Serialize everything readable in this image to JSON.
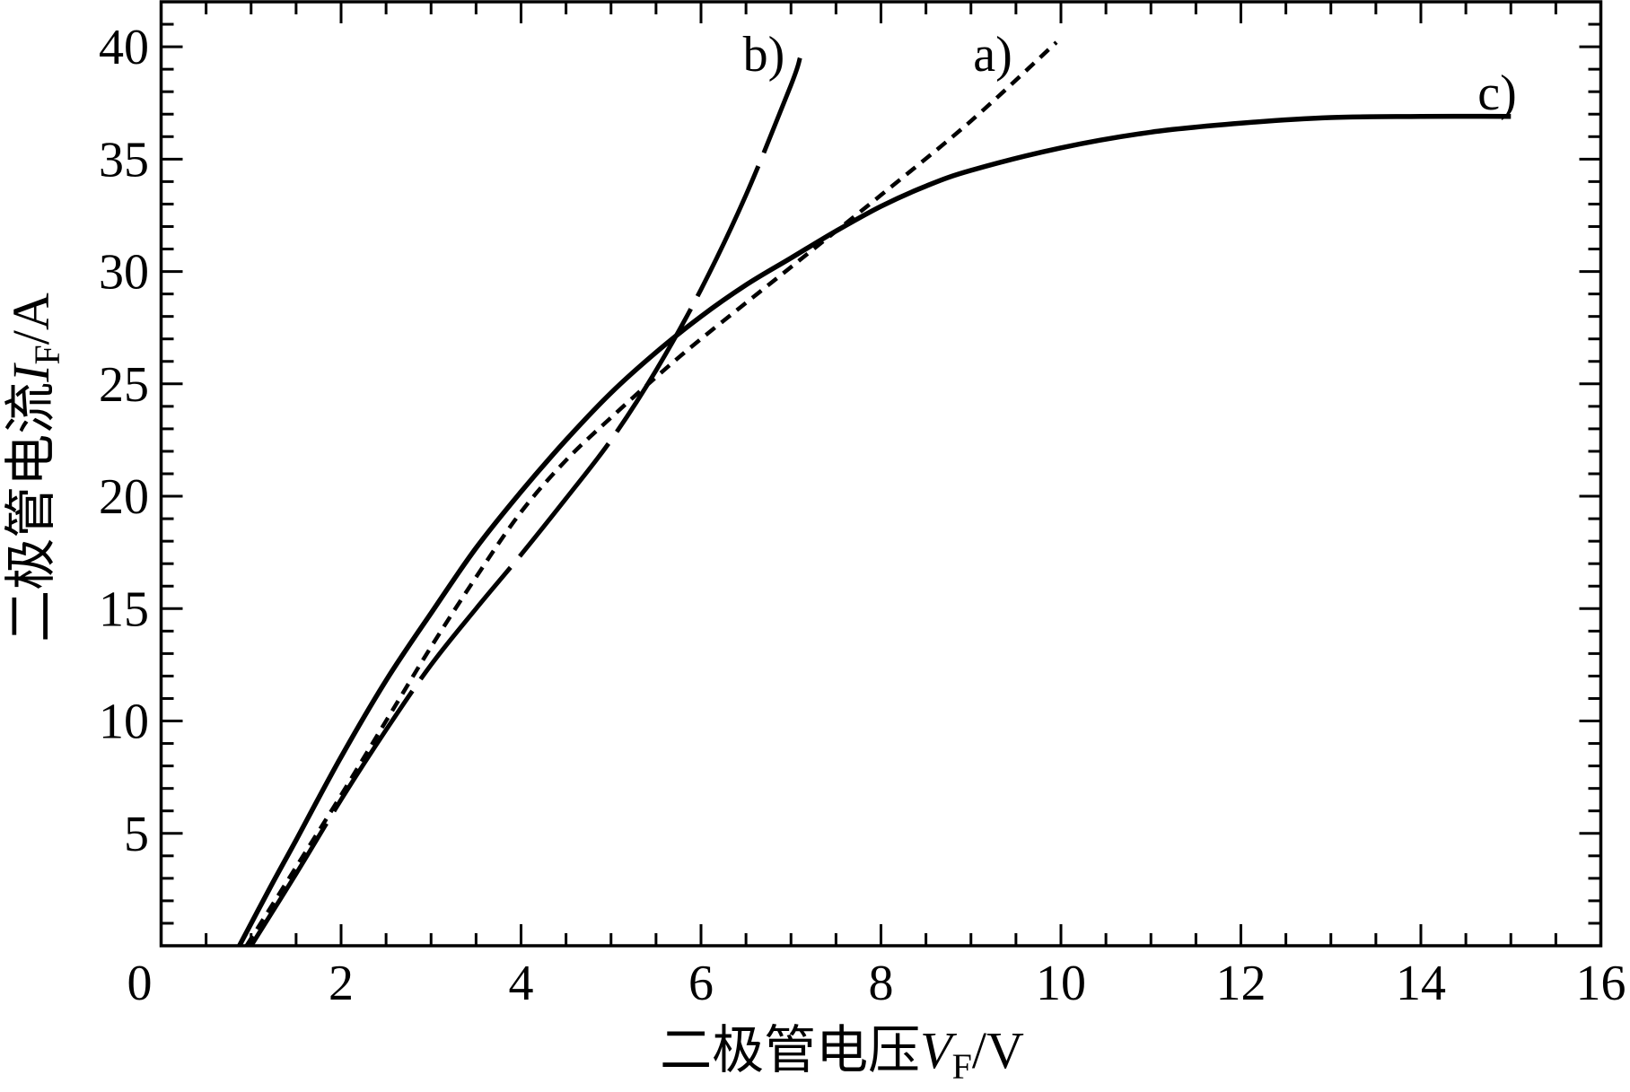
{
  "chart_data": {
    "type": "line",
    "xlabel": {
      "text": "二极管电压",
      "symbol": "V",
      "subscript": "F",
      "unit": "/V"
    },
    "ylabel": {
      "text": "二极管电流",
      "symbol": "I",
      "subscript": "F",
      "unit": "/A"
    },
    "xlim": [
      0,
      16
    ],
    "ylim": [
      0,
      42
    ],
    "x_ticks": [
      0,
      2,
      4,
      6,
      8,
      10,
      12,
      14,
      16
    ],
    "x_tick_labels": [
      "0",
      "2",
      "4",
      "6",
      "8",
      "10",
      "12",
      "14",
      "16"
    ],
    "y_ticks": [
      5,
      10,
      15,
      20,
      25,
      30,
      35,
      40
    ],
    "y_tick_labels": [
      "5",
      "10",
      "15",
      "20",
      "25",
      "30",
      "35",
      "40"
    ],
    "x_minor_step": 0.5,
    "y_minor_step": 1,
    "grid": false,
    "ticks_on_all_sides": true,
    "series": [
      {
        "name": "a)",
        "line_style": "short-dash",
        "color": "#000000",
        "x": [
          0.95,
          1.5,
          2,
          2.5,
          3,
          3.5,
          4,
          4.5,
          5,
          5.5,
          6,
          7,
          8,
          9,
          9.95
        ],
        "y": [
          0,
          3.5,
          6.7,
          10.0,
          13.3,
          16.4,
          19.3,
          21.6,
          23.5,
          25.3,
          27.0,
          30.2,
          33.4,
          36.7,
          40.2
        ]
      },
      {
        "name": "b)",
        "line_style": "long-dash",
        "color": "#000000",
        "x": [
          1.0,
          1.5,
          2,
          2.5,
          3,
          3.5,
          4,
          4.5,
          5,
          5.5,
          6,
          6.5,
          7,
          7.1
        ],
        "y": [
          0,
          3.2,
          6.5,
          9.6,
          12.5,
          15.0,
          17.4,
          19.9,
          22.5,
          25.6,
          29.2,
          33.4,
          38.3,
          39.5
        ]
      },
      {
        "name": "c)",
        "line_style": "solid",
        "color": "#000000",
        "x": [
          0.87,
          1.2,
          1.5,
          2,
          2.5,
          3,
          3.5,
          4,
          4.5,
          5,
          5.5,
          6,
          6.5,
          7,
          7.5,
          8,
          8.5,
          9,
          10,
          11,
          12,
          13,
          14,
          15
        ],
        "y": [
          0,
          2.5,
          4.7,
          8.4,
          11.8,
          14.8,
          17.7,
          20.2,
          22.5,
          24.6,
          26.4,
          28.0,
          29.4,
          30.6,
          31.8,
          32.9,
          33.8,
          34.5,
          35.5,
          36.2,
          36.6,
          36.85,
          36.9,
          36.9
        ]
      }
    ]
  }
}
